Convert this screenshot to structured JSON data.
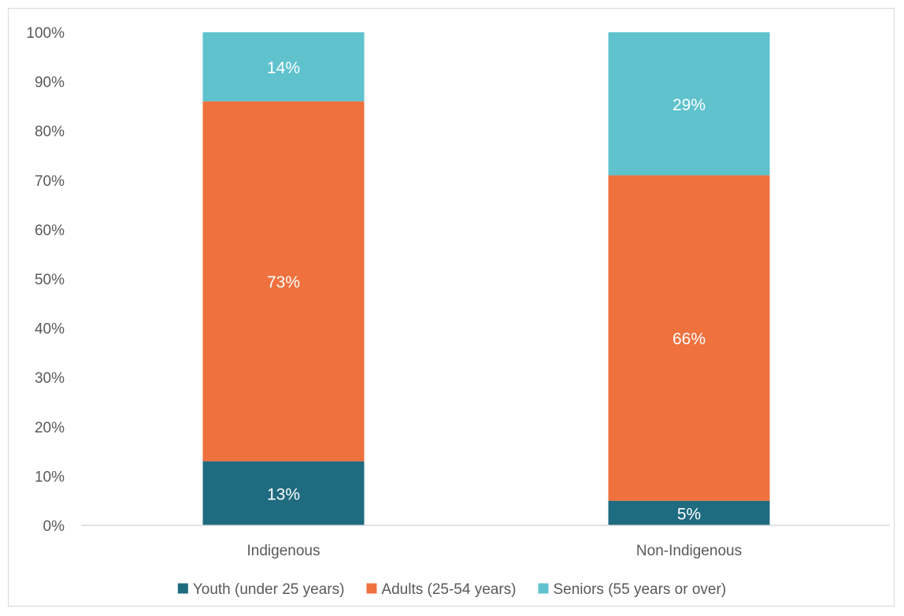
{
  "chart_data": {
    "type": "bar",
    "stacked": true,
    "title": "",
    "xlabel": "",
    "ylabel": "",
    "ylim": [
      0,
      100
    ],
    "y_ticks": [
      "0%",
      "10%",
      "20%",
      "30%",
      "40%",
      "50%",
      "60%",
      "70%",
      "80%",
      "90%",
      "100%"
    ],
    "categories": [
      "Indigenous",
      "Non-Indigenous"
    ],
    "series": [
      {
        "name": "Youth (under 25 years)",
        "color": "#1f6b80",
        "values": [
          13,
          5
        ],
        "labels": [
          "13%",
          "5%"
        ]
      },
      {
        "name": "Adults (25-54 years)",
        "color": "#ef713e",
        "values": [
          73,
          66
        ],
        "labels": [
          "73%",
          "66%"
        ]
      },
      {
        "name": "Seniors (55 years or over)",
        "color": "#5fc2cd",
        "values": [
          14,
          29
        ],
        "labels": [
          "14%",
          "29%"
        ]
      }
    ],
    "legend_position": "bottom",
    "grid": false
  }
}
